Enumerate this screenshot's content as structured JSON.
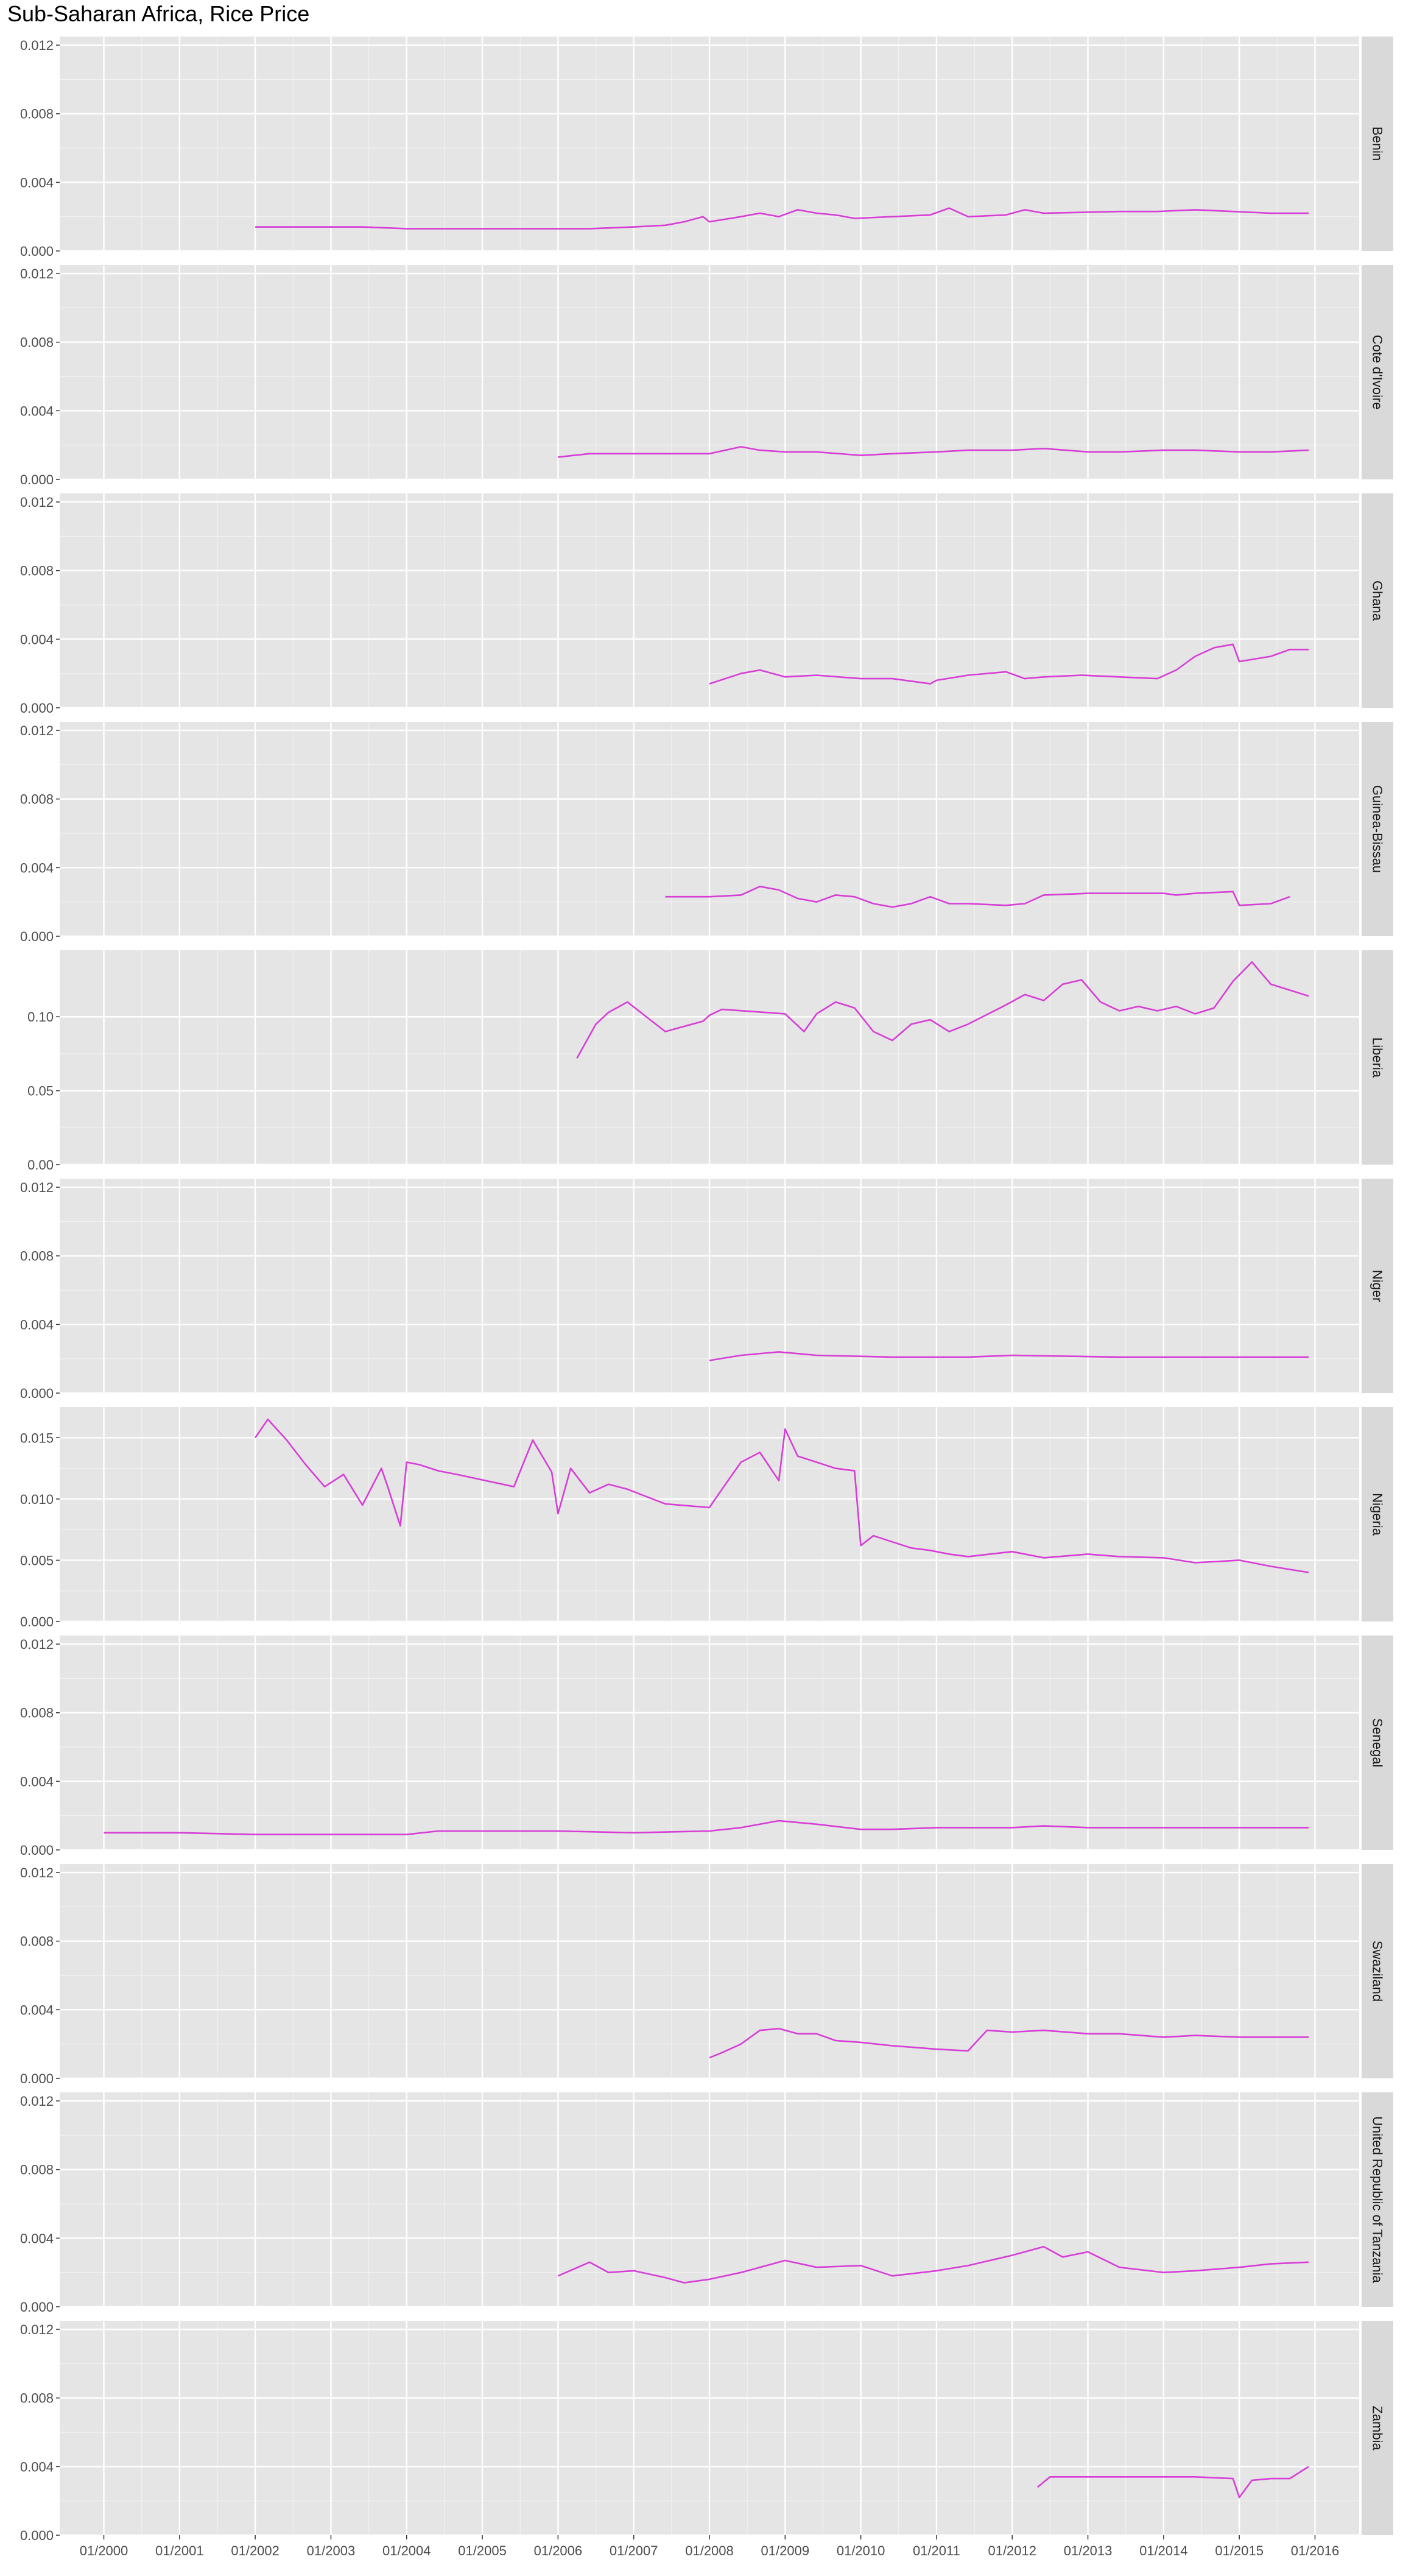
{
  "chart_data": {
    "type": "line",
    "title": "Sub-Saharan Africa, Rice Price",
    "xlabel": "",
    "ylabel": "",
    "x_ticks": [
      "01/2000",
      "01/2001",
      "01/2002",
      "01/2003",
      "01/2004",
      "01/2005",
      "01/2006",
      "01/2007",
      "01/2008",
      "01/2009",
      "01/2010",
      "01/2011",
      "01/2012",
      "01/2013",
      "01/2014",
      "01/2015",
      "01/2016"
    ],
    "xlim": [
      "1999-06",
      "2016-08"
    ],
    "grid": true,
    "line_color": "#D63ED6",
    "panel_bg": "#E5E5E5",
    "strip_bg": "#D9D9D9",
    "facets": [
      {
        "name": "Benin",
        "ylim": [
          0,
          0.0125
        ],
        "y_ticks": [
          "0.000",
          "0.004",
          "0.008",
          "0.012"
        ],
        "x": [
          "2002-01",
          "2003-06",
          "2004-01",
          "2005-06",
          "2006-01",
          "2006-06",
          "2007-01",
          "2007-06",
          "2007-09",
          "2007-12",
          "2008-01",
          "2008-06",
          "2008-09",
          "2008-12",
          "2009-03",
          "2009-06",
          "2009-09",
          "2009-12",
          "2010-06",
          "2010-12",
          "2011-03",
          "2011-06",
          "2011-12",
          "2012-03",
          "2012-06",
          "2013-06",
          "2013-12",
          "2014-06",
          "2014-12",
          "2015-06",
          "2015-12"
        ],
        "y": [
          0.0014,
          0.0014,
          0.0013,
          0.0013,
          0.0013,
          0.0013,
          0.0014,
          0.0015,
          0.0017,
          0.002,
          0.0017,
          0.002,
          0.0022,
          0.002,
          0.0024,
          0.0022,
          0.0021,
          0.0019,
          0.002,
          0.0021,
          0.0025,
          0.002,
          0.0021,
          0.0024,
          0.0022,
          0.0023,
          0.0023,
          0.0024,
          0.0023,
          0.0022,
          0.0022
        ]
      },
      {
        "name": "Cote d'Ivoire",
        "ylim": [
          0,
          0.0125
        ],
        "y_ticks": [
          "0.000",
          "0.004",
          "0.008",
          "0.012"
        ],
        "x": [
          "2006-01",
          "2006-06",
          "2007-01",
          "2007-06",
          "2008-01",
          "2008-06",
          "2008-09",
          "2009-01",
          "2009-06",
          "2010-01",
          "2010-06",
          "2011-01",
          "2011-06",
          "2012-01",
          "2012-06",
          "2013-01",
          "2013-06",
          "2014-01",
          "2014-06",
          "2015-01",
          "2015-06",
          "2015-12"
        ],
        "y": [
          0.0013,
          0.0015,
          0.0015,
          0.0015,
          0.0015,
          0.0019,
          0.0017,
          0.0016,
          0.0016,
          0.0014,
          0.0015,
          0.0016,
          0.0017,
          0.0017,
          0.0018,
          0.0016,
          0.0016,
          0.0017,
          0.0017,
          0.0016,
          0.0016,
          0.0017
        ]
      },
      {
        "name": "Ghana",
        "ylim": [
          0,
          0.0125
        ],
        "y_ticks": [
          "0.000",
          "0.004",
          "0.008",
          "0.012"
        ],
        "x": [
          "2008-01",
          "2008-06",
          "2008-09",
          "2009-01",
          "2009-06",
          "2010-01",
          "2010-06",
          "2010-12",
          "2011-01",
          "2011-06",
          "2011-12",
          "2012-03",
          "2012-06",
          "2012-12",
          "2013-06",
          "2013-12",
          "2014-03",
          "2014-06",
          "2014-09",
          "2014-12",
          "2015-01",
          "2015-06",
          "2015-09",
          "2015-12"
        ],
        "y": [
          0.0014,
          0.002,
          0.0022,
          0.0018,
          0.0019,
          0.0017,
          0.0017,
          0.0014,
          0.0016,
          0.0019,
          0.0021,
          0.0017,
          0.0018,
          0.0019,
          0.0018,
          0.0017,
          0.0022,
          0.003,
          0.0035,
          0.0037,
          0.0027,
          0.003,
          0.0034,
          0.0034
        ]
      },
      {
        "name": "Guinea-Bissau",
        "ylim": [
          0,
          0.0125
        ],
        "y_ticks": [
          "0.000",
          "0.004",
          "0.008",
          "0.012"
        ],
        "x": [
          "2007-06",
          "2008-01",
          "2008-06",
          "2008-09",
          "2008-12",
          "2009-03",
          "2009-06",
          "2009-09",
          "2009-12",
          "2010-03",
          "2010-06",
          "2010-09",
          "2010-12",
          "2011-03",
          "2011-06",
          "2011-12",
          "2012-03",
          "2012-06",
          "2013-01",
          "2013-06",
          "2014-01",
          "2014-03",
          "2014-06",
          "2014-12",
          "2015-01",
          "2015-06",
          "2015-09"
        ],
        "y": [
          0.0023,
          0.0023,
          0.0024,
          0.0029,
          0.0027,
          0.0022,
          0.002,
          0.0024,
          0.0023,
          0.0019,
          0.0017,
          0.0019,
          0.0023,
          0.0019,
          0.0019,
          0.0018,
          0.0019,
          0.0024,
          0.0025,
          0.0025,
          0.0025,
          0.0024,
          0.0025,
          0.0026,
          0.0018,
          0.0019,
          0.0023
        ]
      },
      {
        "name": "Liberia",
        "ylim": [
          0,
          0.145
        ],
        "y_ticks": [
          "0.00",
          "0.05",
          "0.10"
        ],
        "x": [
          "2006-04",
          "2006-07",
          "2006-09",
          "2006-12",
          "2007-06",
          "2007-12",
          "2008-01",
          "2008-03",
          "2009-01",
          "2009-04",
          "2009-06",
          "2009-09",
          "2009-12",
          "2010-03",
          "2010-06",
          "2010-09",
          "2010-12",
          "2011-03",
          "2011-06",
          "2011-12",
          "2012-03",
          "2012-06",
          "2012-09",
          "2012-12",
          "2013-03",
          "2013-06",
          "2013-09",
          "2013-12",
          "2014-03",
          "2014-06",
          "2014-09",
          "2014-12",
          "2015-03",
          "2015-06",
          "2015-12"
        ],
        "y": [
          0.072,
          0.095,
          0.103,
          0.11,
          0.09,
          0.097,
          0.101,
          0.105,
          0.102,
          0.09,
          0.102,
          0.11,
          0.106,
          0.09,
          0.084,
          0.095,
          0.098,
          0.09,
          0.095,
          0.108,
          0.115,
          0.111,
          0.122,
          0.125,
          0.11,
          0.104,
          0.107,
          0.104,
          0.107,
          0.102,
          0.106,
          0.124,
          0.137,
          0.122,
          0.114
        ]
      },
      {
        "name": "Niger",
        "ylim": [
          0,
          0.0125
        ],
        "y_ticks": [
          "0.000",
          "0.004",
          "0.008",
          "0.012"
        ],
        "x": [
          "2008-01",
          "2008-06",
          "2008-12",
          "2009-06",
          "2010-06",
          "2011-06",
          "2012-01",
          "2013-06",
          "2014-06",
          "2015-06",
          "2015-12"
        ],
        "y": [
          0.0019,
          0.0022,
          0.0024,
          0.0022,
          0.0021,
          0.0021,
          0.0022,
          0.0021,
          0.0021,
          0.0021,
          0.0021
        ]
      },
      {
        "name": "Nigeria",
        "ylim": [
          0,
          0.0175
        ],
        "y_ticks": [
          "0.000",
          "0.005",
          "0.010",
          "0.015"
        ],
        "x": [
          "2002-01",
          "2002-03",
          "2002-06",
          "2002-09",
          "2002-12",
          "2003-03",
          "2003-06",
          "2003-09",
          "2003-10",
          "2003-12",
          "2004-01",
          "2004-03",
          "2004-06",
          "2004-09",
          "2005-06",
          "2005-09",
          "2005-12",
          "2006-01",
          "2006-03",
          "2006-06",
          "2006-09",
          "2006-12",
          "2007-06",
          "2008-01",
          "2008-03",
          "2008-06",
          "2008-09",
          "2008-12",
          "2009-01",
          "2009-03",
          "2009-06",
          "2009-09",
          "2009-12",
          "2010-01",
          "2010-03",
          "2010-06",
          "2010-09",
          "2010-12",
          "2011-03",
          "2011-06",
          "2012-01",
          "2012-06",
          "2013-01",
          "2013-06",
          "2014-01",
          "2014-06",
          "2015-01",
          "2015-06",
          "2015-12"
        ],
        "y": [
          0.015,
          0.0165,
          0.0148,
          0.0128,
          0.011,
          0.012,
          0.0095,
          0.0125,
          0.011,
          0.0078,
          0.013,
          0.0128,
          0.0123,
          0.012,
          0.011,
          0.0148,
          0.0122,
          0.0088,
          0.0125,
          0.0105,
          0.0112,
          0.0108,
          0.0096,
          0.0093,
          0.0108,
          0.013,
          0.0138,
          0.0115,
          0.0157,
          0.0135,
          0.013,
          0.0125,
          0.0123,
          0.0062,
          0.007,
          0.0065,
          0.006,
          0.0058,
          0.0055,
          0.0053,
          0.0057,
          0.0052,
          0.0055,
          0.0053,
          0.0052,
          0.0048,
          0.005,
          0.0045,
          0.004
        ]
      },
      {
        "name": "Senegal",
        "ylim": [
          0,
          0.0125
        ],
        "y_ticks": [
          "0.000",
          "0.004",
          "0.008",
          "0.012"
        ],
        "x": [
          "2000-01",
          "2001-01",
          "2002-01",
          "2003-01",
          "2004-01",
          "2004-06",
          "2005-01",
          "2006-01",
          "2007-01",
          "2008-01",
          "2008-06",
          "2008-12",
          "2009-06",
          "2010-01",
          "2010-06",
          "2011-01",
          "2012-01",
          "2012-06",
          "2013-01",
          "2014-01",
          "2015-01",
          "2015-12"
        ],
        "y": [
          0.001,
          0.001,
          0.0009,
          0.0009,
          0.0009,
          0.0011,
          0.0011,
          0.0011,
          0.001,
          0.0011,
          0.0013,
          0.0017,
          0.0015,
          0.0012,
          0.0012,
          0.0013,
          0.0013,
          0.0014,
          0.0013,
          0.0013,
          0.0013,
          0.0013
        ]
      },
      {
        "name": "Swaziland",
        "ylim": [
          0,
          0.0125
        ],
        "y_ticks": [
          "0.000",
          "0.004",
          "0.008",
          "0.012"
        ],
        "x": [
          "2008-01",
          "2008-03",
          "2008-06",
          "2008-09",
          "2008-12",
          "2009-03",
          "2009-06",
          "2009-09",
          "2010-01",
          "2010-06",
          "2011-01",
          "2011-06",
          "2011-09",
          "2012-01",
          "2012-06",
          "2013-01",
          "2013-06",
          "2014-01",
          "2014-06",
          "2015-01",
          "2015-06",
          "2015-12"
        ],
        "y": [
          0.0012,
          0.0015,
          0.002,
          0.0028,
          0.0029,
          0.0026,
          0.0026,
          0.0022,
          0.0021,
          0.0019,
          0.0017,
          0.0016,
          0.0028,
          0.0027,
          0.0028,
          0.0026,
          0.0026,
          0.0024,
          0.0025,
          0.0024,
          0.0024,
          0.0024
        ]
      },
      {
        "name": "United Republic of Tanzania",
        "ylim": [
          0,
          0.0125
        ],
        "y_ticks": [
          "0.000",
          "0.004",
          "0.008",
          "0.012"
        ],
        "x": [
          "2006-01",
          "2006-06",
          "2006-09",
          "2007-01",
          "2007-06",
          "2007-09",
          "2008-01",
          "2008-06",
          "2008-12",
          "2009-01",
          "2009-06",
          "2010-01",
          "2010-06",
          "2011-01",
          "2011-06",
          "2012-01",
          "2012-06",
          "2012-09",
          "2013-01",
          "2013-06",
          "2014-01",
          "2014-06",
          "2015-01",
          "2015-06",
          "2015-12"
        ],
        "y": [
          0.0018,
          0.0026,
          0.002,
          0.0021,
          0.0017,
          0.0014,
          0.0016,
          0.002,
          0.0026,
          0.0027,
          0.0023,
          0.0024,
          0.0018,
          0.0021,
          0.0024,
          0.003,
          0.0035,
          0.0029,
          0.0032,
          0.0023,
          0.002,
          0.0021,
          0.0023,
          0.0025,
          0.0026
        ]
      },
      {
        "name": "Zambia",
        "ylim": [
          0,
          0.0125
        ],
        "y_ticks": [
          "0.000",
          "0.004",
          "0.008",
          "0.012"
        ],
        "x": [
          "2012-05",
          "2012-07",
          "2012-12",
          "2013-06",
          "2014-01",
          "2014-06",
          "2014-12",
          "2015-01",
          "2015-03",
          "2015-06",
          "2015-09",
          "2015-12"
        ],
        "y": [
          0.0028,
          0.0034,
          0.0034,
          0.0034,
          0.0034,
          0.0034,
          0.0033,
          0.0022,
          0.0032,
          0.0033,
          0.0033,
          0.004
        ]
      }
    ]
  }
}
